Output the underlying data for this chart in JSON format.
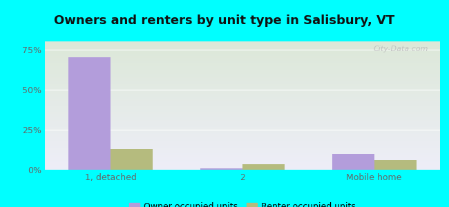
{
  "title": "Owners and renters by unit type in Salisbury, VT",
  "categories": [
    "1, detached",
    "2",
    "Mobile home"
  ],
  "owner_values": [
    70.0,
    1.0,
    10.0
  ],
  "renter_values": [
    13.0,
    3.5,
    6.0
  ],
  "owner_color": "#b39ddb",
  "renter_color": "#b5bb7e",
  "ylim": [
    0,
    80
  ],
  "yticks": [
    0,
    25,
    50,
    75
  ],
  "yticklabels": [
    "0%",
    "25%",
    "50%",
    "75%"
  ],
  "background_top": "#dce8d8",
  "background_bottom": "#eeeef8",
  "figure_bg": "#00ffff",
  "bar_width": 0.32,
  "legend_labels": [
    "Owner occupied units",
    "Renter occupied units"
  ],
  "watermark": "City-Data.com",
  "title_fontsize": 13,
  "axis_label_fontsize": 9,
  "legend_fontsize": 9
}
